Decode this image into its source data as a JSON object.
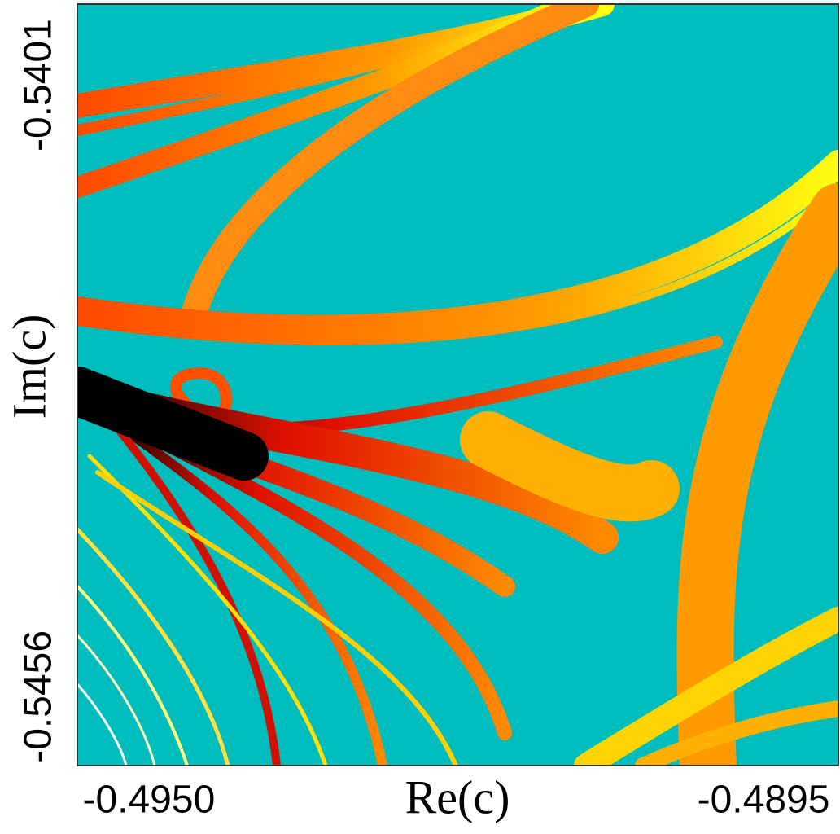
{
  "chart_data": {
    "type": "image",
    "xlabel": "Re(c)",
    "ylabel": "Im(c)",
    "xlim": [
      -0.49564,
      -0.48883
    ],
    "ylim": [
      -0.54622,
      -0.53937
    ],
    "xticks": [
      {
        "value": -0.495,
        "label": "-0.4950"
      },
      {
        "value": -0.4895,
        "label": "-0.4895"
      }
    ],
    "yticks": [
      {
        "value": -0.5456,
        "label": "-0.5456"
      },
      {
        "value": -0.5401,
        "label": "-0.5401"
      }
    ],
    "background": "#00bdbd"
  }
}
